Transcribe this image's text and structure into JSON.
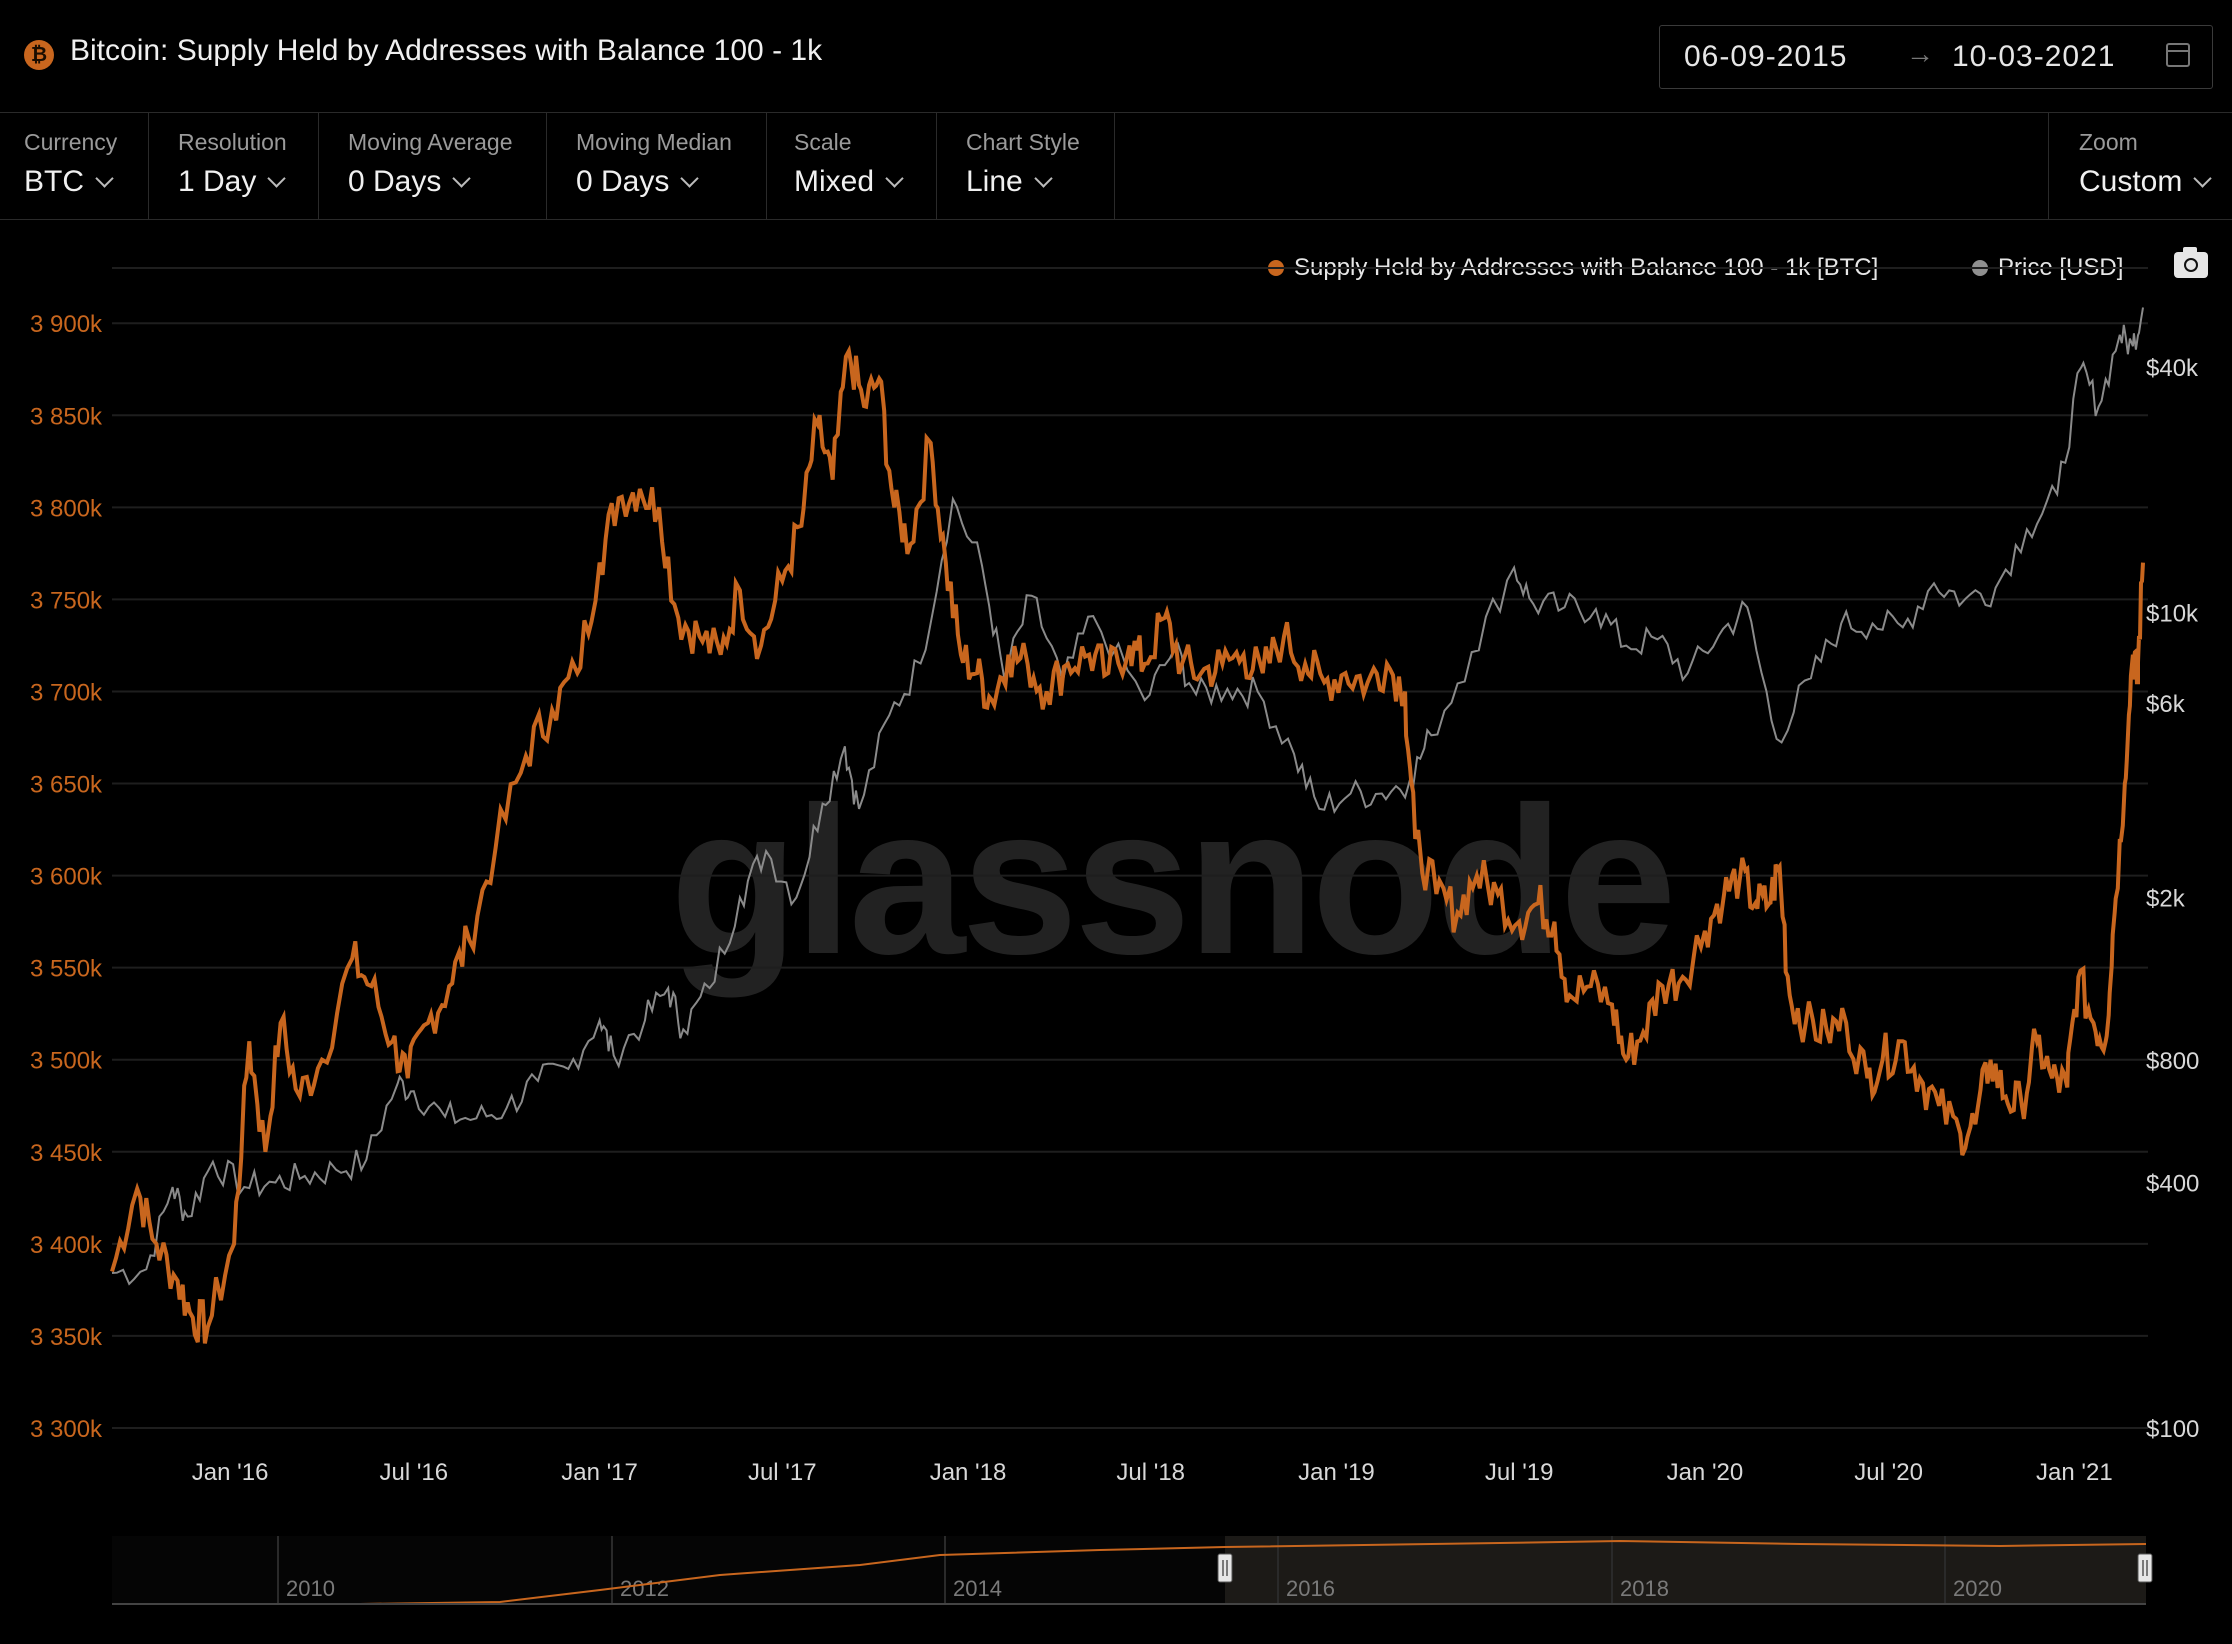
{
  "header": {
    "coin_icon": "bitcoin-icon",
    "coin_symbol": "₿",
    "title": "Bitcoin: Supply Held by Addresses with Balance 100 - 1k",
    "date_from": "06-09-2015",
    "date_to": "10-03-2021",
    "date_arrow": "→"
  },
  "controls": [
    {
      "label": "Currency",
      "value": "BTC"
    },
    {
      "label": "Resolution",
      "value": "1 Day"
    },
    {
      "label": "Moving Average",
      "value": "0 Days"
    },
    {
      "label": "Moving Median",
      "value": "0 Days"
    },
    {
      "label": "Scale",
      "value": "Mixed"
    },
    {
      "label": "Chart Style",
      "value": "Line"
    }
  ],
  "zoom": {
    "label": "Zoom",
    "value": "Custom"
  },
  "legend": {
    "series1": "Supply Held by Addresses with Balance 100 - 1k [BTC]",
    "series2": "Price [USD]"
  },
  "watermark": "glassnode",
  "colors": {
    "supply": "#c8661e",
    "price": "#8a8a8a",
    "grid": "#1e1e1e"
  },
  "chart_data": {
    "type": "line",
    "title": "Bitcoin: Supply Held by Addresses with Balance 100 - 1k",
    "x_range": [
      "2015-09-06",
      "2021-03-10"
    ],
    "x_ticks": [
      "Jan '16",
      "Jul '16",
      "Jan '17",
      "Jul '17",
      "Jan '18",
      "Jul '18",
      "Jan '19",
      "Jul '19",
      "Jan '20",
      "Jul '20",
      "Jan '21"
    ],
    "y_left": {
      "scale": "linear",
      "ylim": [
        3300000,
        3930000
      ],
      "ticks": [
        "3 900k",
        "3 850k",
        "3 800k",
        "3 750k",
        "3 700k",
        "3 650k",
        "3 600k",
        "3 550k",
        "3 500k",
        "3 450k",
        "3 400k",
        "3 350k",
        "3 300k"
      ]
    },
    "y_right": {
      "scale": "log",
      "ylim": [
        100,
        70000
      ],
      "ticks": [
        "$40k",
        "$10k",
        "$6k",
        "$2k",
        "$800",
        "$400",
        "$100"
      ]
    },
    "grid": true,
    "legend_position": "top-right",
    "series": [
      {
        "name": "Supply Held by Addresses with Balance 100 - 1k [BTC]",
        "axis": "left",
        "points": [
          [
            "2015-09-06",
            3385000
          ],
          [
            "2015-10-01",
            3430000
          ],
          [
            "2015-10-20",
            3400000
          ],
          [
            "2015-11-10",
            3380000
          ],
          [
            "2015-11-25",
            3360000
          ],
          [
            "2015-12-10",
            3355000
          ],
          [
            "2016-01-05",
            3400000
          ],
          [
            "2016-01-20",
            3510000
          ],
          [
            "2016-02-05",
            3450000
          ],
          [
            "2016-02-20",
            3520000
          ],
          [
            "2016-03-10",
            3480000
          ],
          [
            "2016-04-01",
            3500000
          ],
          [
            "2016-05-01",
            3555000
          ],
          [
            "2016-05-20",
            3540000
          ],
          [
            "2016-06-10",
            3510000
          ],
          [
            "2016-06-25",
            3490000
          ],
          [
            "2016-07-15",
            3520000
          ],
          [
            "2016-08-05",
            3540000
          ],
          [
            "2016-08-25",
            3565000
          ],
          [
            "2016-09-20",
            3615000
          ],
          [
            "2016-10-20",
            3665000
          ],
          [
            "2016-11-15",
            3690000
          ],
          [
            "2016-12-10",
            3710000
          ],
          [
            "2017-01-01",
            3770000
          ],
          [
            "2017-01-20",
            3805000
          ],
          [
            "2017-02-10",
            3810000
          ],
          [
            "2017-03-01",
            3800000
          ],
          [
            "2017-03-20",
            3740000
          ],
          [
            "2017-04-10",
            3730000
          ],
          [
            "2017-05-01",
            3720000
          ],
          [
            "2017-05-20",
            3755000
          ],
          [
            "2017-06-10",
            3725000
          ],
          [
            "2017-07-01",
            3760000
          ],
          [
            "2017-07-20",
            3790000
          ],
          [
            "2017-08-05",
            3845000
          ],
          [
            "2017-08-20",
            3815000
          ],
          [
            "2017-09-05",
            3885000
          ],
          [
            "2017-09-20",
            3855000
          ],
          [
            "2017-10-05",
            3870000
          ],
          [
            "2017-10-20",
            3800000
          ],
          [
            "2017-11-05",
            3780000
          ],
          [
            "2017-11-25",
            3835000
          ],
          [
            "2017-12-10",
            3770000
          ],
          [
            "2017-12-25",
            3720000
          ],
          [
            "2018-01-10",
            3710000
          ],
          [
            "2018-01-25",
            3695000
          ],
          [
            "2018-02-10",
            3720000
          ],
          [
            "2018-03-01",
            3715000
          ],
          [
            "2018-03-20",
            3700000
          ],
          [
            "2018-04-10",
            3715000
          ],
          [
            "2018-05-01",
            3720000
          ],
          [
            "2018-05-20",
            3710000
          ],
          [
            "2018-06-10",
            3725000
          ],
          [
            "2018-06-25",
            3715000
          ],
          [
            "2018-07-15",
            3740000
          ],
          [
            "2018-08-01",
            3715000
          ],
          [
            "2018-08-20",
            3710000
          ],
          [
            "2018-09-10",
            3715000
          ],
          [
            "2018-10-01",
            3720000
          ],
          [
            "2018-10-20",
            3710000
          ],
          [
            "2018-11-10",
            3730000
          ],
          [
            "2018-12-01",
            3715000
          ],
          [
            "2018-12-20",
            3705000
          ],
          [
            "2019-01-10",
            3710000
          ],
          [
            "2019-02-01",
            3705000
          ],
          [
            "2019-02-20",
            3715000
          ],
          [
            "2019-03-10",
            3700000
          ],
          [
            "2019-03-20",
            3620000
          ],
          [
            "2019-04-10",
            3590000
          ],
          [
            "2019-05-01",
            3580000
          ],
          [
            "2019-05-20",
            3600000
          ],
          [
            "2019-06-10",
            3590000
          ],
          [
            "2019-07-01",
            3575000
          ],
          [
            "2019-07-20",
            3585000
          ],
          [
            "2019-08-05",
            3575000
          ],
          [
            "2019-08-20",
            3535000
          ],
          [
            "2019-09-10",
            3540000
          ],
          [
            "2019-10-01",
            3530000
          ],
          [
            "2019-10-15",
            3500000
          ],
          [
            "2019-11-01",
            3515000
          ],
          [
            "2019-11-20",
            3540000
          ],
          [
            "2019-12-10",
            3545000
          ],
          [
            "2020-01-01",
            3570000
          ],
          [
            "2020-01-20",
            3590000
          ],
          [
            "2020-02-05",
            3600000
          ],
          [
            "2020-02-20",
            3585000
          ],
          [
            "2020-03-05",
            3585000
          ],
          [
            "2020-03-15",
            3605000
          ],
          [
            "2020-03-25",
            3535000
          ],
          [
            "2020-04-10",
            3520000
          ],
          [
            "2020-05-01",
            3515000
          ],
          [
            "2020-05-20",
            3520000
          ],
          [
            "2020-06-10",
            3490000
          ],
          [
            "2020-06-25",
            3500000
          ],
          [
            "2020-07-15",
            3510000
          ],
          [
            "2020-08-01",
            3490000
          ],
          [
            "2020-08-20",
            3475000
          ],
          [
            "2020-09-10",
            3460000
          ],
          [
            "2020-09-25",
            3465000
          ],
          [
            "2020-10-10",
            3500000
          ],
          [
            "2020-10-25",
            3480000
          ],
          [
            "2020-11-10",
            3475000
          ],
          [
            "2020-11-25",
            3510000
          ],
          [
            "2020-12-10",
            3490000
          ],
          [
            "2020-12-25",
            3485000
          ],
          [
            "2021-01-05",
            3545000
          ],
          [
            "2021-01-20",
            3520000
          ],
          [
            "2021-02-01",
            3510000
          ],
          [
            "2021-02-10",
            3580000
          ],
          [
            "2021-02-20",
            3650000
          ],
          [
            "2021-02-28",
            3720000
          ],
          [
            "2021-03-05",
            3705000
          ],
          [
            "2021-03-10",
            3770000
          ]
        ]
      },
      {
        "name": "Price [USD]",
        "axis": "right",
        "points": [
          [
            "2015-09-06",
            240
          ],
          [
            "2015-10-10",
            245
          ],
          [
            "2015-11-05",
            390
          ],
          [
            "2015-11-20",
            330
          ],
          [
            "2015-12-15",
            450
          ],
          [
            "2016-01-15",
            390
          ],
          [
            "2016-02-15",
            400
          ],
          [
            "2016-03-15",
            415
          ],
          [
            "2016-04-15",
            430
          ],
          [
            "2016-05-15",
            455
          ],
          [
            "2016-06-15",
            700
          ],
          [
            "2016-07-01",
            670
          ],
          [
            "2016-08-01",
            580
          ],
          [
            "2016-09-01",
            575
          ],
          [
            "2016-10-01",
            610
          ],
          [
            "2016-11-01",
            710
          ],
          [
            "2016-12-01",
            760
          ],
          [
            "2017-01-01",
            1000
          ],
          [
            "2017-01-15",
            820
          ],
          [
            "2017-02-15",
            1000
          ],
          [
            "2017-03-10",
            1200
          ],
          [
            "2017-03-25",
            950
          ],
          [
            "2017-04-20",
            1200
          ],
          [
            "2017-05-20",
            2000
          ],
          [
            "2017-06-15",
            2600
          ],
          [
            "2017-07-15",
            2000
          ],
          [
            "2017-08-10",
            3400
          ],
          [
            "2017-09-01",
            4700
          ],
          [
            "2017-09-15",
            3300
          ],
          [
            "2017-10-15",
            5600
          ],
          [
            "2017-11-15",
            7500
          ],
          [
            "2017-12-17",
            19000
          ],
          [
            "2018-01-15",
            13000
          ],
          [
            "2018-02-06",
            6900
          ],
          [
            "2018-03-05",
            11000
          ],
          [
            "2018-04-05",
            6800
          ],
          [
            "2018-05-05",
            9800
          ],
          [
            "2018-06-25",
            6100
          ],
          [
            "2018-07-25",
            8200
          ],
          [
            "2018-08-15",
            6300
          ],
          [
            "2018-09-15",
            6500
          ],
          [
            "2018-10-15",
            6400
          ],
          [
            "2018-11-20",
            4500
          ],
          [
            "2018-12-15",
            3300
          ],
          [
            "2019-01-15",
            3600
          ],
          [
            "2019-02-15",
            3600
          ],
          [
            "2019-03-15",
            3900
          ],
          [
            "2019-04-05",
            5000
          ],
          [
            "2019-05-15",
            8000
          ],
          [
            "2019-06-26",
            12900
          ],
          [
            "2019-07-15",
            10500
          ],
          [
            "2019-08-15",
            10300
          ],
          [
            "2019-09-15",
            10200
          ],
          [
            "2019-10-15",
            8300
          ],
          [
            "2019-11-15",
            8600
          ],
          [
            "2019-12-15",
            7100
          ],
          [
            "2020-01-15",
            8800
          ],
          [
            "2020-02-12",
            10300
          ],
          [
            "2020-03-12",
            4900
          ],
          [
            "2020-04-15",
            6900
          ],
          [
            "2020-05-15",
            9400
          ],
          [
            "2020-06-15",
            9400
          ],
          [
            "2020-07-15",
            9200
          ],
          [
            "2020-08-15",
            11800
          ],
          [
            "2020-09-15",
            10800
          ],
          [
            "2020-10-15",
            11500
          ],
          [
            "2020-11-15",
            16000
          ],
          [
            "2020-12-15",
            19500
          ],
          [
            "2021-01-08",
            40000
          ],
          [
            "2021-01-25",
            32000
          ],
          [
            "2021-02-15",
            48000
          ],
          [
            "2021-02-28",
            45000
          ],
          [
            "2021-03-10",
            56000
          ]
        ]
      }
    ]
  },
  "navigator": {
    "ticks": [
      "2010",
      "2012",
      "2014",
      "2016",
      "2018",
      "2020"
    ]
  }
}
